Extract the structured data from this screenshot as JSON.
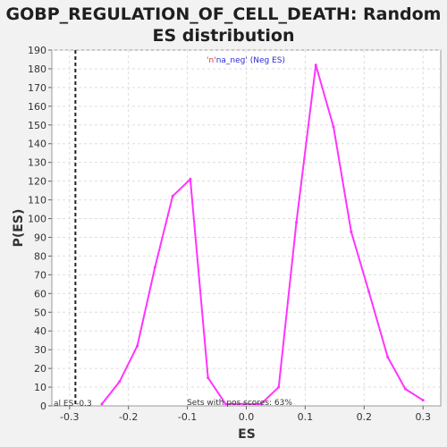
{
  "chart_data": {
    "type": "line",
    "title_line1": "GOBP_REGULATION_OF_CELL_DEATH: Random",
    "title_line2": "ES distribution",
    "xlabel": "ES",
    "ylabel": "P(ES)",
    "xlim": [
      -0.33,
      0.33
    ],
    "ylim": [
      0,
      190
    ],
    "x_ticks": [
      -0.3,
      -0.2,
      -0.1,
      0.0,
      0.1,
      0.2,
      0.3
    ],
    "x_tick_labels": [
      "-0.3",
      "-0.2",
      "-0.1",
      "0.0",
      "0.1",
      "0.2",
      "0.3"
    ],
    "y_ticks": [
      0,
      10,
      20,
      30,
      40,
      50,
      60,
      70,
      80,
      90,
      100,
      110,
      120,
      130,
      140,
      150,
      160,
      170,
      180,
      190
    ],
    "y_tick_labels": [
      "0",
      "10",
      "20",
      "30",
      "40",
      "50",
      "60",
      "70",
      "80",
      "90",
      "100",
      "110",
      "120",
      "130",
      "140",
      "150",
      "160",
      "170",
      "180",
      "190"
    ],
    "grid": true,
    "legend": {
      "prefix": "'n'",
      "series_label": "na_neg' (Neg ES)",
      "position": "top-center"
    },
    "series": [
      {
        "name": "na_neg",
        "color": "#ff33ff",
        "x": [
          -0.245,
          -0.215,
          -0.185,
          -0.155,
          -0.125,
          -0.095,
          -0.065,
          -0.035,
          -0.005,
          0.025,
          0.055,
          0.085,
          0.118,
          0.148,
          0.178,
          0.208,
          0.24,
          0.27,
          0.3
        ],
        "y": [
          1,
          13,
          32,
          74,
          112,
          121,
          15,
          1,
          1,
          1,
          10,
          98,
          182,
          149,
          93,
          61,
          26,
          9,
          3
        ]
      }
    ],
    "actual_es": {
      "value": -0.29,
      "label": "al ES -0.3",
      "color": "#222222"
    },
    "annotation": "Sets with pos scores: 63%"
  }
}
